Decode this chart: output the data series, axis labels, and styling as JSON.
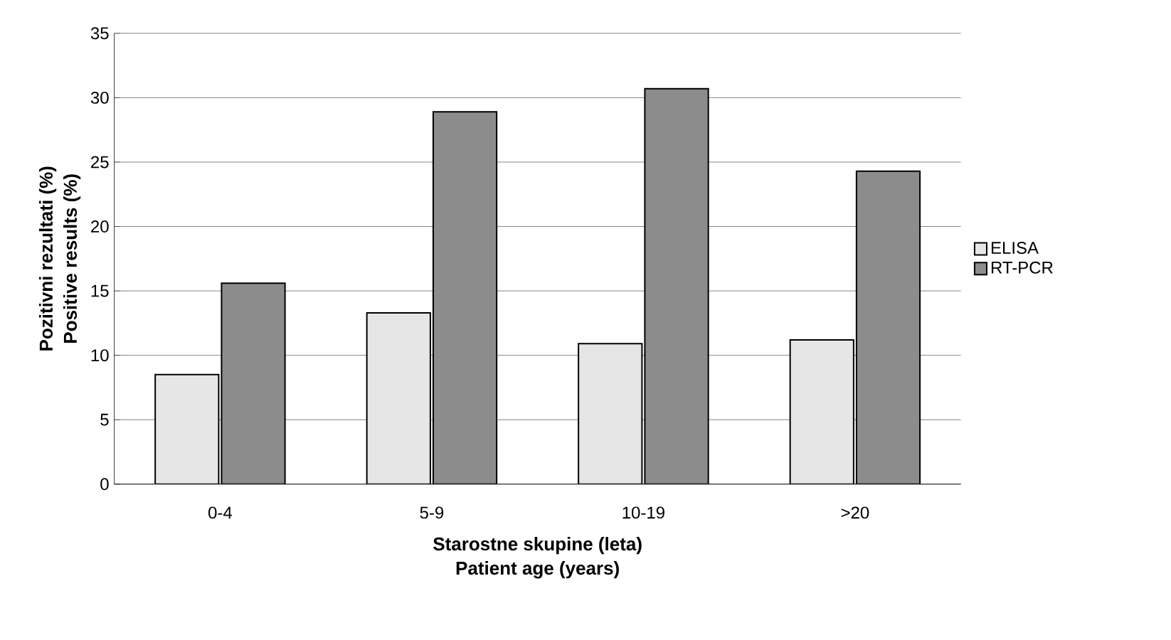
{
  "chart_data": {
    "type": "bar",
    "xlabel": "Starostne skupine (leta)\nPatient age (years)",
    "ylabel": "Pozitivni rezultati (%)\nPositive results (%)",
    "categories": [
      "0-4",
      "5-9",
      "10-19",
      ">20"
    ],
    "series": [
      {
        "name": "ELISA",
        "color": "#e6e6e6",
        "values": [
          8.5,
          13.3,
          10.9,
          11.2
        ]
      },
      {
        "name": "RT-PCR",
        "color": "#8c8c8c",
        "values": [
          15.6,
          28.9,
          30.7,
          24.3
        ]
      }
    ],
    "ylim": [
      0,
      35
    ],
    "yticks": [
      0,
      5,
      10,
      15,
      20,
      25,
      30,
      35
    ],
    "grid": "y",
    "legend": "right"
  }
}
